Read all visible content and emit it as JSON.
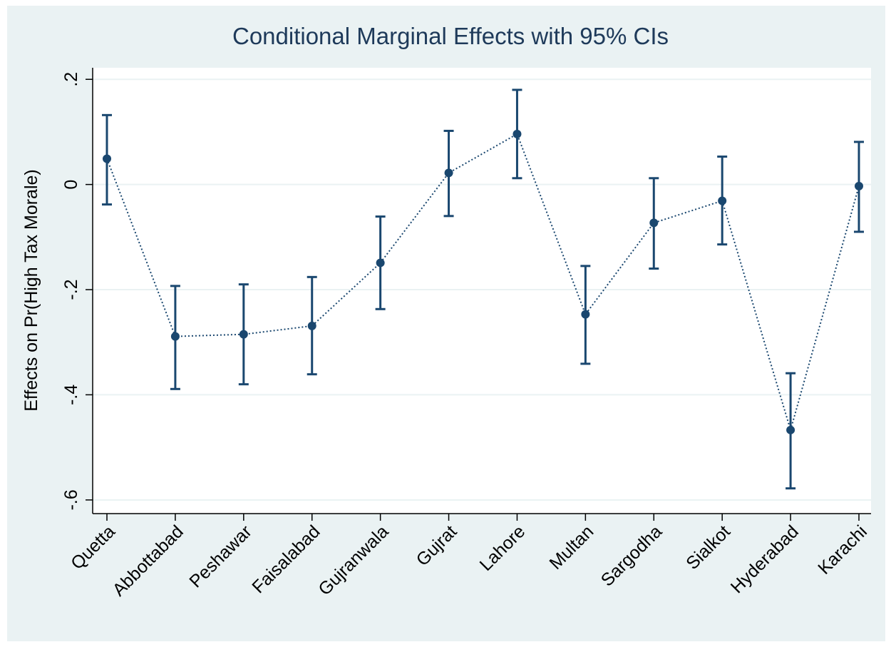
{
  "chart_data": {
    "type": "errorbar-line",
    "title": "Conditional Marginal Effects with 95% CIs",
    "y_label": "Effects on Pr(High Tax Morale)",
    "categories": [
      "Quetta",
      "Abbottabad",
      "Peshawar",
      "Faisalabad",
      "Gujranwala",
      "Gujrat",
      "Lahore",
      "Multan",
      "Sargodha",
      "Sialkot",
      "Hyderabad",
      "Karachi"
    ],
    "series": [
      {
        "color": "#1a476f",
        "values": [
          0.049,
          -0.289,
          -0.285,
          -0.269,
          -0.149,
          0.022,
          0.096,
          -0.247,
          -0.073,
          -0.031,
          -0.467,
          -0.003
        ],
        "lower": [
          -0.038,
          -0.389,
          -0.38,
          -0.361,
          -0.237,
          -0.06,
          0.012,
          -0.341,
          -0.16,
          -0.114,
          -0.578,
          -0.09
        ],
        "upper": [
          0.132,
          -0.193,
          -0.19,
          -0.176,
          -0.061,
          0.102,
          0.18,
          -0.155,
          0.012,
          0.053,
          -0.359,
          0.081
        ]
      }
    ],
    "ylim": [
      -0.626,
      0.222
    ],
    "yticks": [
      {
        "value": 0.2,
        "label": ".2"
      },
      0,
      {
        "value": -0.2,
        "label": "-.2"
      },
      {
        "value": -0.4,
        "label": "-.4"
      },
      {
        "value": -0.6,
        "label": "-.6"
      }
    ],
    "grid": true
  }
}
